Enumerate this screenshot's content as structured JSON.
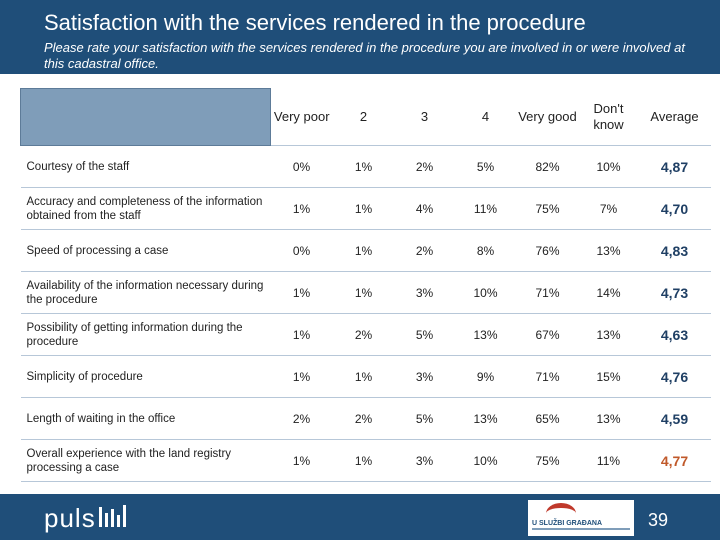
{
  "header": {
    "title": "Satisfaction with the services rendered in the procedure",
    "subtitle": "Please rate your satisfaction with the services rendered in the procedure you are involved in or were involved at this cadastral office."
  },
  "table": {
    "columns": [
      "Very poor",
      "2",
      "3",
      "4",
      "Very good",
      "Don't know",
      "Average"
    ],
    "rows": [
      {
        "label": "Courtesy of the staff",
        "values": [
          "0%",
          "1%",
          "2%",
          "5%",
          "82%",
          "10%"
        ],
        "average": "4,87"
      },
      {
        "label": "Accuracy and completeness of the information obtained from the staff",
        "values": [
          "1%",
          "1%",
          "4%",
          "11%",
          "75%",
          "7%"
        ],
        "average": "4,70"
      },
      {
        "label": "Speed of processing a case",
        "values": [
          "0%",
          "1%",
          "2%",
          "8%",
          "76%",
          "13%"
        ],
        "average": "4,83"
      },
      {
        "label": "Availability of the information necessary during the procedure",
        "values": [
          "1%",
          "1%",
          "3%",
          "10%",
          "71%",
          "14%"
        ],
        "average": "4,73"
      },
      {
        "label": "Possibility of getting information during the procedure",
        "values": [
          "1%",
          "2%",
          "5%",
          "13%",
          "67%",
          "13%"
        ],
        "average": "4,63"
      },
      {
        "label": "Simplicity of procedure",
        "values": [
          "1%",
          "1%",
          "3%",
          "9%",
          "71%",
          "15%"
        ],
        "average": "4,76"
      },
      {
        "label": "Length of waiting in the office",
        "values": [
          "2%",
          "2%",
          "5%",
          "13%",
          "65%",
          "13%"
        ],
        "average": "4,59"
      },
      {
        "label": "Overall experience with the land registry processing a case",
        "values": [
          "1%",
          "1%",
          "3%",
          "10%",
          "75%",
          "11%"
        ],
        "average": "4,77",
        "highlight": true
      }
    ]
  },
  "footer": {
    "logo_text": "puls",
    "partner_name": "U SLUŽBI GRAĐANA",
    "page_number": "39",
    "colors": {
      "header_bg": "#1f4e79",
      "highlight_avg": "#c0592a"
    }
  }
}
